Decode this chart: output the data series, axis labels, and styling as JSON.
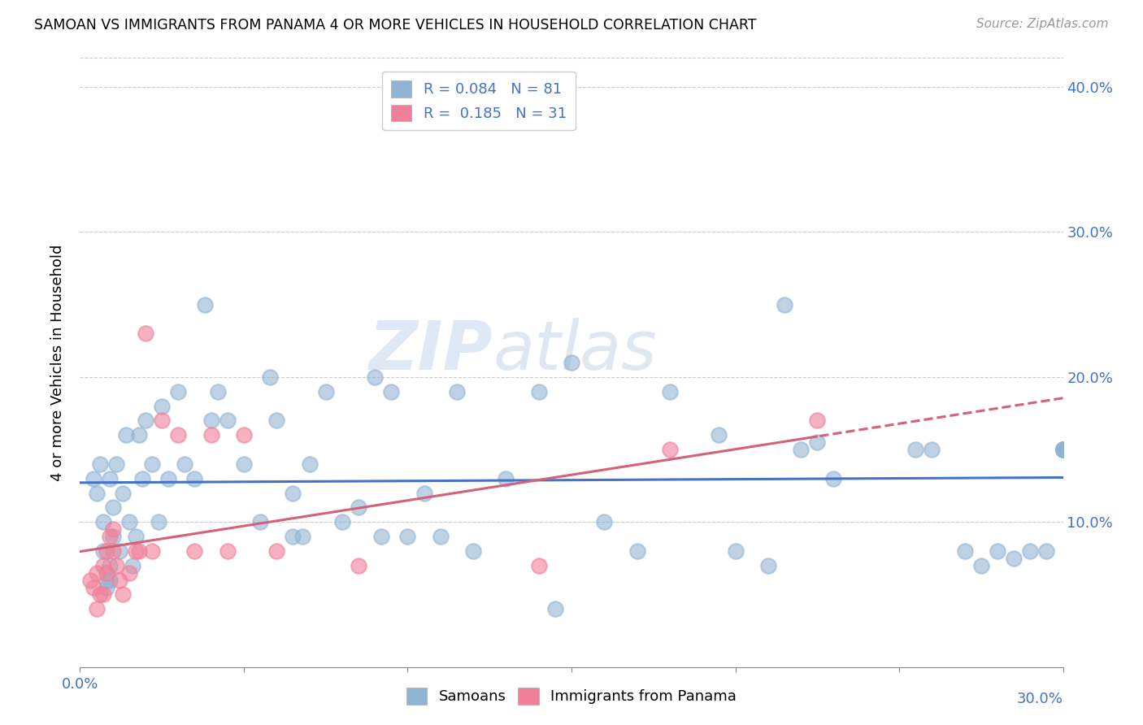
{
  "title": "SAMOAN VS IMMIGRANTS FROM PANAMA 4 OR MORE VEHICLES IN HOUSEHOLD CORRELATION CHART",
  "source": "Source: ZipAtlas.com",
  "ylabel": "4 or more Vehicles in Household",
  "xlim": [
    0.0,
    0.3
  ],
  "ylim": [
    0.0,
    0.42
  ],
  "xticks": [
    0.0,
    0.05,
    0.1,
    0.15,
    0.2,
    0.25,
    0.3
  ],
  "yticks": [
    0.0,
    0.1,
    0.2,
    0.3,
    0.4
  ],
  "samoan_color": "#92b4d4",
  "panama_color": "#f08098",
  "trend_blue": "#4472c4",
  "trend_pink": "#d4607a",
  "legend_blue_label": "R = 0.084   N = 81",
  "legend_pink_label": "R =  0.185   N = 31",
  "watermark_zip": "ZIP",
  "watermark_atlas": "atlas",
  "samoans_x": [
    0.004,
    0.005,
    0.006,
    0.007,
    0.007,
    0.008,
    0.008,
    0.009,
    0.009,
    0.009,
    0.01,
    0.01,
    0.011,
    0.012,
    0.013,
    0.014,
    0.015,
    0.016,
    0.017,
    0.018,
    0.019,
    0.02,
    0.022,
    0.024,
    0.025,
    0.027,
    0.03,
    0.032,
    0.035,
    0.038,
    0.04,
    0.042,
    0.045,
    0.05,
    0.055,
    0.058,
    0.06,
    0.065,
    0.065,
    0.068,
    0.07,
    0.075,
    0.08,
    0.085,
    0.09,
    0.092,
    0.095,
    0.1,
    0.105,
    0.11,
    0.115,
    0.12,
    0.13,
    0.14,
    0.145,
    0.15,
    0.16,
    0.17,
    0.18,
    0.195,
    0.2,
    0.21,
    0.215,
    0.22,
    0.225,
    0.23,
    0.255,
    0.26,
    0.27,
    0.275,
    0.28,
    0.285,
    0.29,
    0.295,
    0.3,
    0.3,
    0.3,
    0.3,
    0.3,
    0.3,
    0.3
  ],
  "samoans_y": [
    0.13,
    0.12,
    0.14,
    0.1,
    0.08,
    0.06,
    0.055,
    0.06,
    0.07,
    0.13,
    0.11,
    0.09,
    0.14,
    0.08,
    0.12,
    0.16,
    0.1,
    0.07,
    0.09,
    0.16,
    0.13,
    0.17,
    0.14,
    0.1,
    0.18,
    0.13,
    0.19,
    0.14,
    0.13,
    0.25,
    0.17,
    0.19,
    0.17,
    0.14,
    0.1,
    0.2,
    0.17,
    0.09,
    0.12,
    0.09,
    0.14,
    0.19,
    0.1,
    0.11,
    0.2,
    0.09,
    0.19,
    0.09,
    0.12,
    0.09,
    0.19,
    0.08,
    0.13,
    0.19,
    0.04,
    0.21,
    0.1,
    0.08,
    0.19,
    0.16,
    0.08,
    0.07,
    0.25,
    0.15,
    0.155,
    0.13,
    0.15,
    0.15,
    0.08,
    0.07,
    0.08,
    0.075,
    0.08,
    0.08,
    0.15,
    0.15,
    0.15,
    0.15,
    0.15,
    0.15,
    0.15
  ],
  "panama_x": [
    0.003,
    0.004,
    0.005,
    0.005,
    0.006,
    0.007,
    0.007,
    0.008,
    0.008,
    0.009,
    0.01,
    0.01,
    0.011,
    0.012,
    0.013,
    0.015,
    0.017,
    0.018,
    0.02,
    0.022,
    0.025,
    0.03,
    0.035,
    0.04,
    0.045,
    0.05,
    0.06,
    0.085,
    0.14,
    0.18,
    0.225
  ],
  "panama_y": [
    0.06,
    0.055,
    0.04,
    0.065,
    0.05,
    0.05,
    0.07,
    0.065,
    0.08,
    0.09,
    0.08,
    0.095,
    0.07,
    0.06,
    0.05,
    0.065,
    0.08,
    0.08,
    0.23,
    0.08,
    0.17,
    0.16,
    0.08,
    0.16,
    0.08,
    0.16,
    0.08,
    0.07,
    0.07,
    0.15,
    0.17
  ]
}
